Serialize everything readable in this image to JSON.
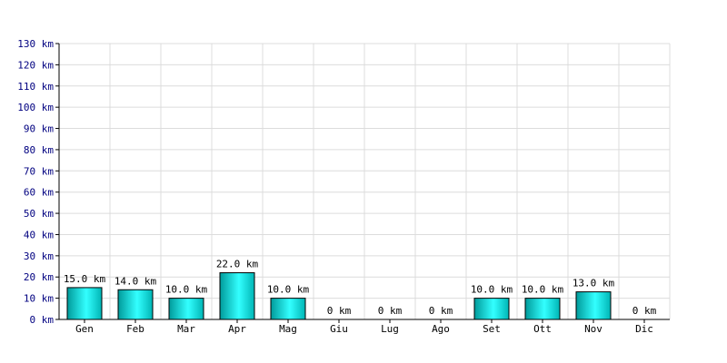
{
  "chart_data": {
    "type": "bar",
    "categories": [
      "Gen",
      "Feb",
      "Mar",
      "Apr",
      "Mag",
      "Giu",
      "Lug",
      "Ago",
      "Set",
      "Ott",
      "Nov",
      "Dic"
    ],
    "values": [
      15.0,
      14.0,
      10.0,
      22.0,
      10.0,
      0,
      0,
      0,
      10.0,
      10.0,
      13.0,
      0
    ],
    "data_labels": [
      "15.0 km",
      "14.0 km",
      "10.0 km",
      "22.0 km",
      "10.0 km",
      "0 km",
      "0 km",
      "0 km",
      "10.0 km",
      "10.0 km",
      "13.0 km",
      "0 km"
    ],
    "y_ticks": [
      "0 km",
      "10 km",
      "20 km",
      "30 km",
      "40 km",
      "50 km",
      "60 km",
      "70 km",
      "80 km",
      "90 km",
      "100 km",
      "110 km",
      "120 km",
      "130 km"
    ],
    "ylim": [
      0,
      130
    ],
    "unit": "km",
    "title": "",
    "xlabel": "",
    "ylabel": "",
    "grid": true,
    "colors": {
      "bar_dark": "#009a9a",
      "bar_light": "#33ffff",
      "bar_border": "#000000",
      "grid": "#dcdcdc",
      "axis": "#000000",
      "ytick_text": "#000080"
    }
  }
}
